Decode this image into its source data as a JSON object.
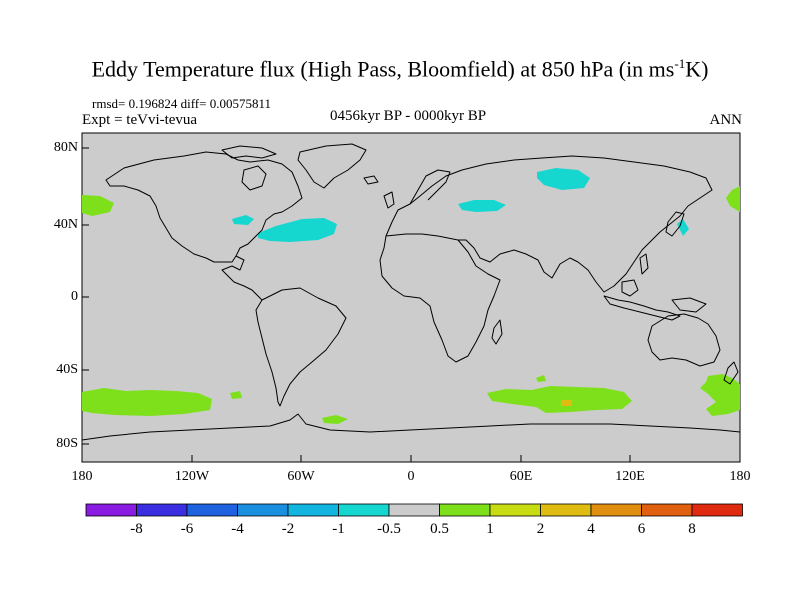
{
  "title": {
    "prefix": "Eddy Temperature flux (High Pass, Bloomfield) at 850 hPa (in ms",
    "superscript": "-1",
    "suffix": "K)"
  },
  "stats_line": "rmsd= 0.196824  diff= 0.00575811",
  "experiment": "Expt = teVvi-tevua",
  "period": "0456kyr BP - 0000kyr BP",
  "season": "ANN",
  "lat_labels": [
    "80N",
    "40N",
    "0",
    "40S",
    "80S"
  ],
  "lon_labels": [
    "180",
    "120W",
    "60W",
    "0",
    "60E",
    "120E",
    "180"
  ],
  "colorbar": {
    "labels": [
      "-8",
      "-6",
      "-4",
      "-2",
      "-1",
      "-0.5",
      "0.5",
      "1",
      "2",
      "4",
      "6",
      "8"
    ],
    "colors": [
      "#8a1be0",
      "#3a2ee0",
      "#1f62e0",
      "#1a8fe0",
      "#12b5e0",
      "#16d6d0",
      "#cccccc",
      "#7de01a",
      "#c8dc14",
      "#e0bc10",
      "#e08e10",
      "#e06010",
      "#e02a10"
    ]
  },
  "colors": {
    "ocean_bg": "#cccccc",
    "cyan": "#16d6d0",
    "green": "#7de01a",
    "orange": "#e0bc10"
  },
  "anomaly_regions": [
    {
      "name": "north-atlantic",
      "color": "cyan",
      "lon": -57,
      "lat": 39
    },
    {
      "name": "east-pacific-west-coast",
      "color": "cyan",
      "lon": -103,
      "lat": 42
    },
    {
      "name": "siberia",
      "color": "cyan",
      "lon": 87,
      "lat": 63
    },
    {
      "name": "central-asia",
      "color": "cyan",
      "lon": 40,
      "lat": 49
    },
    {
      "name": "japan-coast",
      "color": "cyan",
      "lon": 146,
      "lat": 39
    },
    {
      "name": "north-pacific-east",
      "color": "green",
      "lon": -172,
      "lat": 48
    },
    {
      "name": "north-pacific-west",
      "color": "green",
      "lon": 176,
      "lat": 51
    },
    {
      "name": "south-pacific",
      "color": "green",
      "lon": -150,
      "lat": -60
    },
    {
      "name": "south-indian-ocean",
      "color": "green",
      "lon": 80,
      "lat": -57
    },
    {
      "name": "south-of-australia",
      "color": "green",
      "lon": 165,
      "lat": -57
    },
    {
      "name": "south-indian-peak",
      "color": "orange",
      "lon": 83,
      "lat": -59
    }
  ]
}
